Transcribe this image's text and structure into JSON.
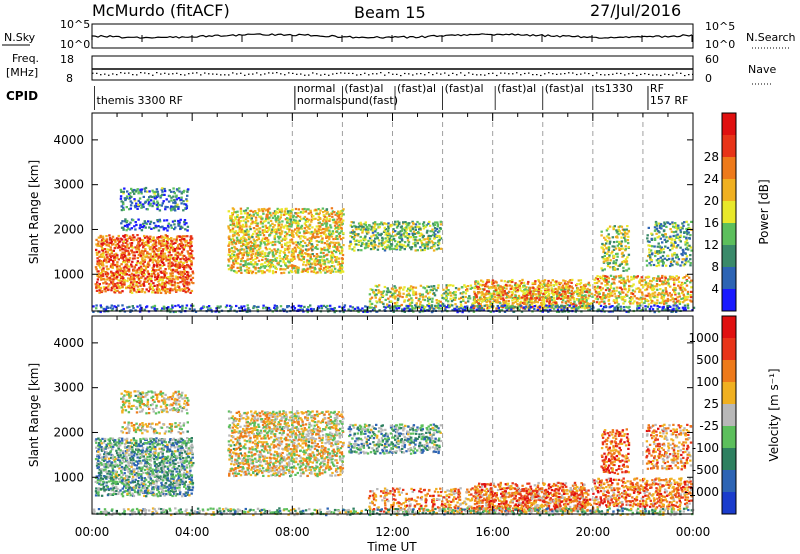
{
  "header": {
    "station": "McMurdo (fitACF)",
    "beam": "Beam 15",
    "date": "27/Jul/2016"
  },
  "aux_panels": {
    "nsky": {
      "left_label": "N.Sky",
      "right_label": "N.Search",
      "left_ticks": [
        "10^5",
        "10^0"
      ],
      "right_ticks": [
        "10^5",
        "10^0"
      ]
    },
    "freq": {
      "left_label": "Freq.",
      "left_unit": "[MHz]",
      "right_label": "Nave",
      "left_ticks": [
        "18",
        "8"
      ],
      "right_ticks": [
        "60",
        "0"
      ]
    },
    "cpid": {
      "label": "CPID",
      "entries": [
        {
          "time_h": 0.1,
          "row": 0,
          "text": "themis 3300 RF"
        },
        {
          "time_h": 8.1,
          "row": -1,
          "text": "normal"
        },
        {
          "time_h": 8.1,
          "row": 0,
          "text": "normalsound(fast)"
        },
        {
          "time_h": 10.0,
          "row": -1,
          "text": "(fast)al"
        },
        {
          "time_h": 12.1,
          "row": -1,
          "text": "(fast)al"
        },
        {
          "time_h": 14.0,
          "row": -1,
          "text": "(fast)al"
        },
        {
          "time_h": 16.1,
          "row": -1,
          "text": "(fast)al"
        },
        {
          "time_h": 18.0,
          "row": -1,
          "text": "(fast)al"
        },
        {
          "time_h": 20.0,
          "row": -1,
          "text": "ts1330"
        },
        {
          "time_h": 22.2,
          "row": -1,
          "text": "RF"
        },
        {
          "time_h": 22.2,
          "row": 0,
          "text": "157 RF"
        }
      ]
    }
  },
  "chart_data": [
    {
      "type": "heatmap",
      "title": "",
      "xlabel": "Time UT",
      "ylabel": "Slant Range [km]",
      "xlim_hours": [
        0,
        24
      ],
      "ylim": [
        180,
        4600
      ],
      "x_ticks": [
        "00:00",
        "04:00",
        "08:00",
        "12:00",
        "16:00",
        "20:00",
        "00:00"
      ],
      "y_ticks": [
        1000,
        2000,
        3000,
        4000
      ],
      "dashed_time_markers_h": [
        8,
        10,
        12,
        14,
        16,
        18,
        20,
        22
      ],
      "colorbar": {
        "label": "Power [dB]",
        "ticks": [
          "4",
          "8",
          "12",
          "16",
          "20",
          "24",
          "28"
        ],
        "colors": [
          "#1a1aff",
          "#2d64b4",
          "#3a8a6a",
          "#5cbf5c",
          "#e8e82a",
          "#f0b020",
          "#ee7a1a",
          "#e83418",
          "#e01010"
        ]
      },
      "scatter_regions": [
        {
          "t0": 0.1,
          "t1": 4.0,
          "r0": 600,
          "r1": 1900,
          "level": 0.75,
          "density": 0.75
        },
        {
          "t0": 1.1,
          "t1": 3.8,
          "r0": 2450,
          "r1": 2950,
          "level": 0.25,
          "density": 0.5
        },
        {
          "t0": 1.1,
          "t1": 3.8,
          "r0": 2000,
          "r1": 2250,
          "level": 0.15,
          "density": 0.5
        },
        {
          "t0": 5.4,
          "t1": 10.0,
          "r0": 1050,
          "r1": 2500,
          "level": 0.55,
          "density": 0.65
        },
        {
          "t0": 10.2,
          "t1": 13.9,
          "r0": 1550,
          "r1": 2200,
          "level": 0.4,
          "density": 0.6
        },
        {
          "t0": 11.0,
          "t1": 20.0,
          "r0": 250,
          "r1": 780,
          "level": 0.5,
          "density": 0.45
        },
        {
          "t0": 15.2,
          "t1": 19.8,
          "r0": 250,
          "r1": 900,
          "level": 0.65,
          "density": 0.55
        },
        {
          "t0": 20.0,
          "t1": 23.9,
          "r0": 350,
          "r1": 1000,
          "level": 0.6,
          "density": 0.6
        },
        {
          "t0": 20.3,
          "t1": 21.4,
          "r0": 1100,
          "r1": 2100,
          "level": 0.45,
          "density": 0.55
        },
        {
          "t0": 22.1,
          "t1": 23.9,
          "r0": 1200,
          "r1": 2200,
          "level": 0.35,
          "density": 0.45
        },
        {
          "t0": 0.0,
          "t1": 24.0,
          "r0": 180,
          "r1": 330,
          "level": 0.2,
          "density": 0.5
        }
      ]
    },
    {
      "type": "heatmap",
      "title": "",
      "xlabel": "Time UT",
      "ylabel": "Slant Range [km]",
      "xlim_hours": [
        0,
        24
      ],
      "ylim": [
        180,
        4600
      ],
      "x_ticks": [
        "00:00",
        "04:00",
        "08:00",
        "12:00",
        "16:00",
        "20:00",
        "00:00"
      ],
      "y_ticks": [
        1000,
        2000,
        3000,
        4000
      ],
      "dashed_time_markers_h": [
        8,
        10,
        12,
        14,
        16,
        18,
        20,
        22
      ],
      "colorbar": {
        "label": "Velocity [m s⁻¹]",
        "ticks": [
          "1000",
          "500",
          "100",
          "25",
          "-25",
          "-100",
          "-500",
          "-1000"
        ],
        "colors": [
          "#1a3ccc",
          "#2d64b4",
          "#2e8060",
          "#5cbf5c",
          "#b8b8b8",
          "#f0b020",
          "#ee7a1a",
          "#e83418",
          "#e01010"
        ]
      },
      "scatter_regions": [
        {
          "t0": 0.1,
          "t1": 4.0,
          "r0": 600,
          "r1": 1900,
          "level": 0.35,
          "density": 0.75
        },
        {
          "t0": 1.1,
          "t1": 3.8,
          "r0": 2450,
          "r1": 2950,
          "level": 0.55,
          "density": 0.5
        },
        {
          "t0": 1.1,
          "t1": 3.8,
          "r0": 2000,
          "r1": 2250,
          "level": 0.55,
          "density": 0.5
        },
        {
          "t0": 5.4,
          "t1": 10.0,
          "r0": 1050,
          "r1": 2500,
          "level": 0.55,
          "density": 0.65
        },
        {
          "t0": 10.2,
          "t1": 13.9,
          "r0": 1550,
          "r1": 2200,
          "level": 0.35,
          "density": 0.6
        },
        {
          "t0": 11.0,
          "t1": 20.0,
          "r0": 250,
          "r1": 780,
          "level": 0.7,
          "density": 0.45
        },
        {
          "t0": 15.2,
          "t1": 19.8,
          "r0": 250,
          "r1": 900,
          "level": 0.75,
          "density": 0.55
        },
        {
          "t0": 20.0,
          "t1": 23.9,
          "r0": 350,
          "r1": 1000,
          "level": 0.72,
          "density": 0.6
        },
        {
          "t0": 20.3,
          "t1": 21.4,
          "r0": 1100,
          "r1": 2100,
          "level": 0.78,
          "density": 0.55
        },
        {
          "t0": 22.1,
          "t1": 23.9,
          "r0": 1200,
          "r1": 2200,
          "level": 0.7,
          "density": 0.45
        },
        {
          "t0": 0.0,
          "t1": 24.0,
          "r0": 180,
          "r1": 330,
          "level": 0.4,
          "density": 0.5
        }
      ]
    }
  ]
}
